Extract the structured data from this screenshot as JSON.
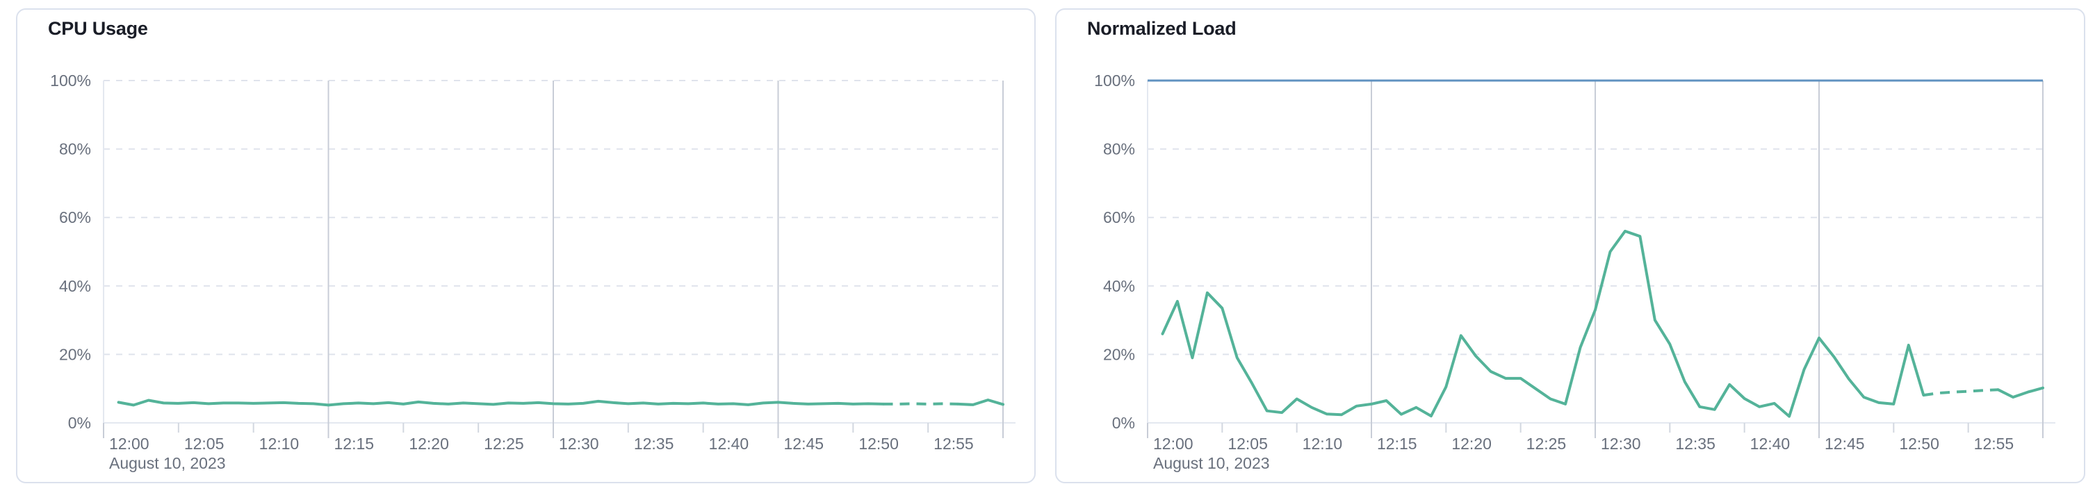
{
  "page": {
    "background": "#ffffff",
    "date_context_label": "August 10, 2023"
  },
  "colors": {
    "series_green": "#54B399",
    "reference_blue": "#6092C0",
    "grid_dashed": "#dfe3ec",
    "grid_solid_15min": "#c8cdd7",
    "axis_line": "#e4e8f0",
    "tick_mark": "#d2d7e0",
    "tick_label": "#69707d",
    "panel_title": "#1a1d27",
    "panel_border": "#dbe1ed"
  },
  "panels": [
    {
      "title": "CPU Usage"
    },
    {
      "title": "Normalized Load"
    }
  ],
  "chart_data": [
    {
      "type": "line",
      "title": "CPU Usage",
      "xlabel": "",
      "ylabel": "",
      "x_context_label": "August 10, 2023",
      "x_ticks": [
        "12:00",
        "12:05",
        "12:10",
        "12:15",
        "12:20",
        "12:25",
        "12:30",
        "12:35",
        "12:40",
        "12:45",
        "12:50",
        "12:55"
      ],
      "y_ticks": [
        "0%",
        "20%",
        "40%",
        "60%",
        "80%",
        "100%"
      ],
      "ylim": [
        0,
        100
      ],
      "x_range_minutes": [
        0,
        60
      ],
      "grid": {
        "horizontal": "dashed",
        "vertical_15min": "solid",
        "legend": "none"
      },
      "series": [
        {
          "name": "CPU Usage",
          "color": "#54B399",
          "dashed_from": "12:52",
          "dashed_to": "12:57",
          "times": [
            "12:01",
            "12:02",
            "12:03",
            "12:04",
            "12:05",
            "12:06",
            "12:07",
            "12:08",
            "12:09",
            "12:10",
            "12:11",
            "12:12",
            "12:13",
            "12:14",
            "12:15",
            "12:16",
            "12:17",
            "12:18",
            "12:19",
            "12:20",
            "12:21",
            "12:22",
            "12:23",
            "12:24",
            "12:25",
            "12:26",
            "12:27",
            "12:28",
            "12:29",
            "12:30",
            "12:31",
            "12:32",
            "12:33",
            "12:34",
            "12:35",
            "12:36",
            "12:37",
            "12:38",
            "12:39",
            "12:40",
            "12:41",
            "12:42",
            "12:43",
            "12:44",
            "12:45",
            "12:46",
            "12:47",
            "12:48",
            "12:49",
            "12:50",
            "12:51",
            "12:52",
            "12:53",
            "12:54",
            "12:55",
            "12:56",
            "12:57",
            "12:58",
            "12:59",
            "13:00"
          ],
          "values": [
            6.0,
            5.2,
            6.6,
            5.8,
            5.7,
            5.9,
            5.6,
            5.8,
            5.8,
            5.7,
            5.8,
            5.9,
            5.7,
            5.6,
            5.2,
            5.6,
            5.8,
            5.6,
            5.9,
            5.5,
            6.1,
            5.7,
            5.5,
            5.8,
            5.6,
            5.4,
            5.8,
            5.7,
            5.9,
            5.6,
            5.5,
            5.7,
            6.3,
            5.9,
            5.6,
            5.8,
            5.5,
            5.7,
            5.6,
            5.8,
            5.5,
            5.6,
            5.3,
            5.8,
            6.0,
            5.7,
            5.5,
            5.6,
            5.7,
            5.5,
            5.6,
            5.5,
            5.5,
            5.6,
            5.5,
            5.6,
            5.5,
            5.3,
            6.7,
            5.4
          ]
        }
      ]
    },
    {
      "type": "line",
      "title": "Normalized Load",
      "xlabel": "",
      "ylabel": "",
      "x_context_label": "August 10, 2023",
      "x_ticks": [
        "12:00",
        "12:05",
        "12:10",
        "12:15",
        "12:20",
        "12:25",
        "12:30",
        "12:35",
        "12:40",
        "12:45",
        "12:50",
        "12:55"
      ],
      "y_ticks": [
        "0%",
        "20%",
        "40%",
        "60%",
        "80%",
        "100%"
      ],
      "ylim": [
        0,
        100
      ],
      "x_range_minutes": [
        0,
        60
      ],
      "grid": {
        "horizontal": "dashed",
        "vertical_15min": "solid",
        "legend": "none"
      },
      "reference_line": {
        "value": 100,
        "color": "#6092C0"
      },
      "series": [
        {
          "name": "Normalized Load",
          "color": "#54B399",
          "dashed_from": "12:52",
          "dashed_to": "12:57",
          "times": [
            "12:01",
            "12:02",
            "12:03",
            "12:04",
            "12:05",
            "12:06",
            "12:07",
            "12:08",
            "12:09",
            "12:10",
            "12:11",
            "12:12",
            "12:13",
            "12:14",
            "12:15",
            "12:16",
            "12:17",
            "12:18",
            "12:19",
            "12:20",
            "12:21",
            "12:22",
            "12:23",
            "12:24",
            "12:25",
            "12:26",
            "12:27",
            "12:28",
            "12:29",
            "12:30",
            "12:31",
            "12:32",
            "12:33",
            "12:34",
            "12:35",
            "12:36",
            "12:37",
            "12:38",
            "12:39",
            "12:40",
            "12:41",
            "12:42",
            "12:43",
            "12:44",
            "12:45",
            "12:46",
            "12:47",
            "12:48",
            "12:49",
            "12:50",
            "12:51",
            "12:52",
            "12:53",
            "12:54",
            "12:55",
            "12:56",
            "12:57",
            "12:58",
            "12:59",
            "13:00"
          ],
          "values": [
            26,
            35.5,
            19,
            38,
            33.5,
            19,
            11.5,
            3.5,
            3,
            7,
            4.5,
            2.6,
            2.4,
            4.9,
            5.5,
            6.5,
            2.5,
            4.5,
            2,
            10.5,
            25.5,
            19.5,
            15,
            13,
            13,
            10,
            7,
            5.5,
            22,
            33,
            50,
            56,
            54.5,
            30,
            23,
            12,
            4.7,
            3.9,
            11.2,
            7.1,
            4.7,
            5.7,
            1.9,
            15.6,
            24.8,
            19.3,
            12.8,
            7.5,
            5.9,
            5.5,
            22.7,
            8.1,
            8.7,
            9,
            9.2,
            9.5,
            9.7,
            7.5,
            9,
            10.2
          ]
        }
      ]
    }
  ]
}
